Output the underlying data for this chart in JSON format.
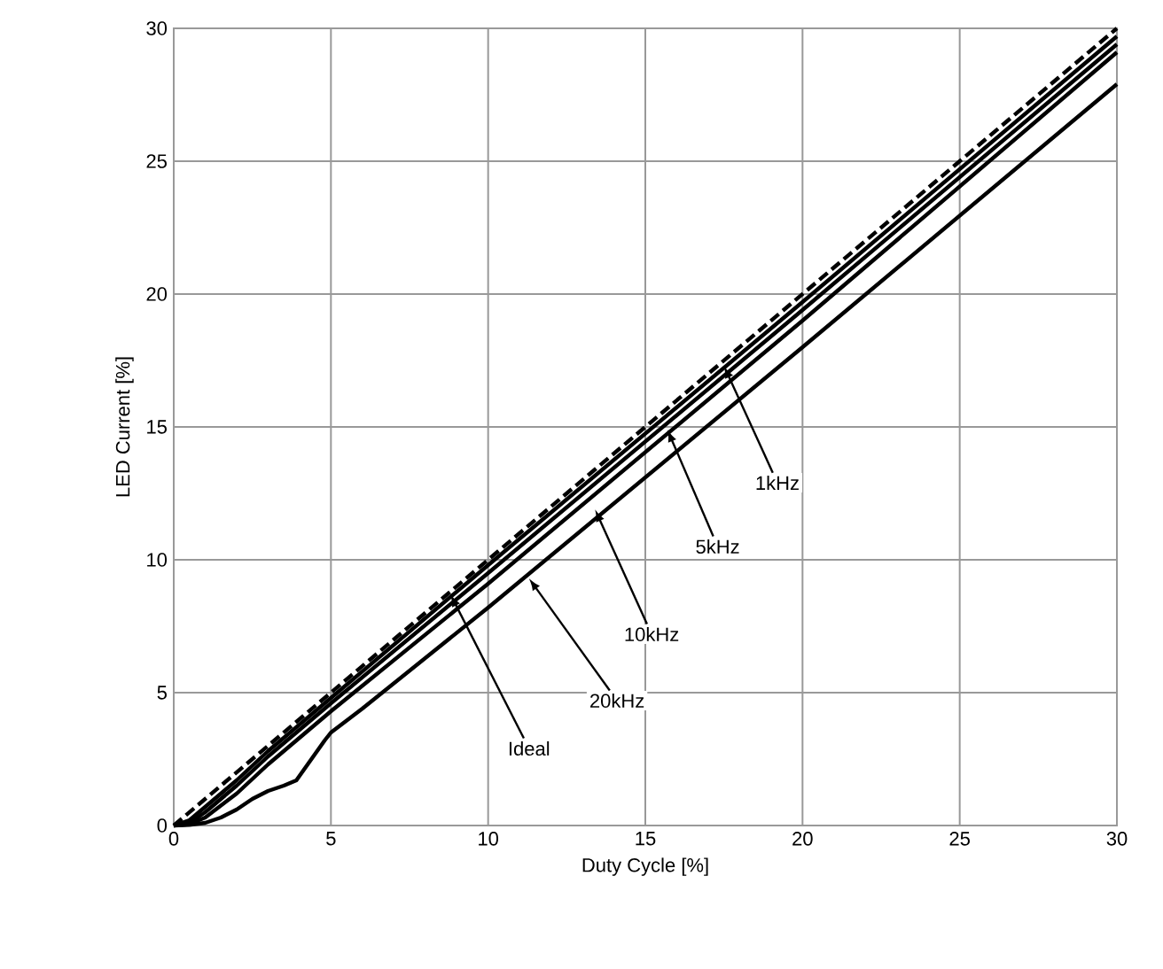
{
  "chart_data": {
    "type": "line",
    "xlabel": "Duty Cycle [%]",
    "ylabel": "LED Current [%]",
    "xlim": [
      0,
      30
    ],
    "ylim": [
      0,
      30
    ],
    "xticks": [
      0,
      5,
      10,
      15,
      20,
      25,
      30
    ],
    "yticks": [
      0,
      5,
      10,
      15,
      20,
      25,
      30
    ],
    "grid": true,
    "marker": "none",
    "series": [
      {
        "color": "#000000",
        "line_style": "dashed",
        "x": [
          0,
          30
        ],
        "values": [
          0,
          30
        ]
      },
      {
        "color": "#000000",
        "line_style": "solid",
        "x": [
          0,
          0.5,
          1,
          2,
          3,
          5,
          10,
          20,
          30
        ],
        "values": [
          0,
          0.2,
          0.7,
          1.7,
          2.8,
          4.8,
          9.8,
          19.7,
          29.7
        ]
      },
      {
        "color": "#000000",
        "line_style": "solid",
        "x": [
          0,
          0.5,
          1,
          2,
          3,
          5,
          10,
          20,
          30
        ],
        "values": [
          0,
          0.1,
          0.5,
          1.5,
          2.6,
          4.6,
          9.5,
          19.4,
          29.4
        ]
      },
      {
        "color": "#000000",
        "line_style": "solid",
        "x": [
          0,
          0.5,
          1,
          2,
          3,
          5,
          10,
          20,
          30
        ],
        "values": [
          0,
          0.05,
          0.3,
          1.2,
          2.3,
          4.3,
          9.1,
          19.0,
          29.1
        ]
      },
      {
        "color": "#000000",
        "line_style": "solid",
        "x": [
          0,
          0.5,
          1,
          1.5,
          2,
          2.5,
          3,
          3.5,
          3.9,
          4.2,
          4.5,
          4.8,
          5,
          6,
          10,
          20,
          30
        ],
        "values": [
          0,
          0.02,
          0.1,
          0.3,
          0.6,
          1.0,
          1.3,
          1.5,
          1.7,
          2.2,
          2.7,
          3.2,
          3.5,
          4.4,
          8.2,
          18.0,
          27.9
        ]
      }
    ],
    "annotations": [
      {
        "text": "1kHz",
        "x": 17.5,
        "y": 17.3
      },
      {
        "text": "5kHz",
        "x": 15.7,
        "y": 14.9
      },
      {
        "text": "10kHz",
        "x": 13.4,
        "y": 11.9
      },
      {
        "text": "20kHz",
        "x": 11.3,
        "y": 9.3
      },
      {
        "text": "Ideal",
        "x": 8.8,
        "y": 8.7
      }
    ]
  }
}
